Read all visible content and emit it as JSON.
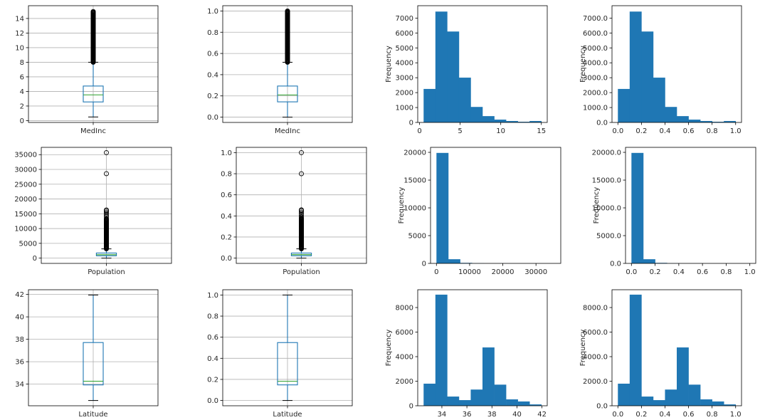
{
  "colors": {
    "bar": "#1f77b4",
    "box": "#1f77b4",
    "median": "#2ca02c",
    "grid": "#b0b0b0",
    "flier_edge": "#000000"
  },
  "chart_data": [
    {
      "type": "box",
      "category": "MedInc",
      "ylim": [
        -0.25,
        15.75
      ],
      "yticks": [
        0,
        2,
        4,
        6,
        8,
        10,
        12,
        14
      ],
      "tick_format": "int",
      "stats": {
        "whislo": 0.5,
        "q1": 2.56,
        "median": 3.53,
        "q3": 4.74,
        "whishi": 8.0
      },
      "outliers_dense_range": [
        8.0,
        15.0
      ],
      "outliers": [],
      "grid": true
    },
    {
      "type": "box",
      "category": "MedInc",
      "ylim": [
        -0.05,
        1.05
      ],
      "yticks": [
        0,
        0.2,
        0.4,
        0.6,
        0.8,
        1.0
      ],
      "tick_format": "1dp",
      "stats": {
        "whislo": 0.0,
        "q1": 0.144,
        "median": 0.209,
        "q3": 0.293,
        "whishi": 0.517
      },
      "outliers_dense_range": [
        0.517,
        1.0
      ],
      "outliers": [],
      "grid": true
    },
    {
      "type": "hist",
      "ylabel": "Frequency",
      "xlim": [
        -0.225,
        15.725
      ],
      "ylim": [
        0,
        7830
      ],
      "bin_range": [
        0.5,
        15.0
      ],
      "xticks": [
        0,
        5,
        10,
        15
      ],
      "yticks": [
        0,
        1000,
        2000,
        3000,
        4000,
        5000,
        6000,
        7000
      ],
      "tick_format": "int",
      "counts": [
        2247,
        7436,
        6098,
        3005,
        1040,
        424,
        190,
        97,
        46,
        97
      ],
      "grid": false
    },
    {
      "type": "hist",
      "ylabel": "Frequency",
      "xlim": [
        -0.05,
        1.05
      ],
      "ylim": [
        0,
        7830
      ],
      "bin_range": [
        0,
        1
      ],
      "xticks": [
        0,
        0.2,
        0.4,
        0.6,
        0.8,
        1.0
      ],
      "yticks": [
        0,
        1000,
        2000,
        3000,
        4000,
        5000,
        6000,
        7000
      ],
      "tick_format": "1dp",
      "counts": [
        2247,
        7436,
        6098,
        3005,
        1040,
        424,
        190,
        97,
        46,
        97
      ],
      "grid": false
    },
    {
      "type": "box",
      "category": "Population",
      "ylim": [
        -1780,
        37465
      ],
      "yticks": [
        0,
        5000,
        10000,
        15000,
        20000,
        25000,
        30000,
        35000
      ],
      "tick_format": "int",
      "stats": {
        "whislo": 3,
        "q1": 787,
        "median": 1166,
        "q3": 1725,
        "whishi": 3132
      },
      "outliers_dense_range": [
        3140,
        13500
      ],
      "outliers": [
        14000,
        14500,
        15000,
        15500,
        16000,
        16300,
        28566,
        35682
      ],
      "grid": true
    },
    {
      "type": "box",
      "category": "Population",
      "ylim": [
        -0.05,
        1.05
      ],
      "yticks": [
        0,
        0.2,
        0.4,
        0.6,
        0.8,
        1.0
      ],
      "tick_format": "1dp",
      "stats": {
        "whislo": 0.0,
        "q1": 0.022,
        "median": 0.033,
        "q3": 0.048,
        "whishi": 0.088
      },
      "outliers_dense_range": [
        0.088,
        0.38
      ],
      "outliers": [
        0.39,
        0.405,
        0.42,
        0.435,
        0.45,
        0.457,
        0.8,
        1.0
      ],
      "grid": true
    },
    {
      "type": "hist",
      "ylabel": "Frequency",
      "xlim": [
        -1781,
        37466
      ],
      "ylim": [
        0,
        20900
      ],
      "bin_range": [
        3,
        35682
      ],
      "xticks": [
        0,
        10000,
        20000,
        30000
      ],
      "yticks": [
        0,
        5000,
        10000,
        15000,
        20000
      ],
      "tick_format": "int",
      "counts": [
        19900,
        750,
        95,
        20,
        6,
        2,
        1,
        0,
        1,
        1
      ],
      "grid": false
    },
    {
      "type": "hist",
      "ylabel": "Frequency",
      "xlim": [
        -0.05,
        1.05
      ],
      "ylim": [
        0,
        20900
      ],
      "bin_range": [
        0,
        1
      ],
      "xticks": [
        0,
        0.2,
        0.4,
        0.6,
        0.8,
        1.0
      ],
      "yticks": [
        0,
        5000,
        10000,
        15000,
        20000
      ],
      "tick_format": "1dp",
      "counts": [
        19900,
        750,
        95,
        20,
        6,
        2,
        1,
        0,
        1,
        1
      ],
      "grid": false
    },
    {
      "type": "box",
      "category": "Latitude",
      "ylim": [
        32.07,
        42.42
      ],
      "yticks": [
        34,
        36,
        38,
        40,
        42
      ],
      "tick_format": "int",
      "stats": {
        "whislo": 32.54,
        "q1": 33.93,
        "median": 34.26,
        "q3": 37.71,
        "whishi": 41.95
      },
      "outliers_dense_range": null,
      "outliers": [],
      "grid": true
    },
    {
      "type": "box",
      "category": "Latitude",
      "ylim": [
        -0.05,
        1.05
      ],
      "yticks": [
        0,
        0.2,
        0.4,
        0.6,
        0.8,
        1.0
      ],
      "tick_format": "1dp",
      "stats": {
        "whislo": 0.0,
        "q1": 0.148,
        "median": 0.182,
        "q3": 0.549,
        "whishi": 1.0
      },
      "outliers_dense_range": null,
      "outliers": [],
      "grid": true
    },
    {
      "type": "hist",
      "ylabel": "Frequency",
      "xlim": [
        32.07,
        42.42
      ],
      "ylim": [
        0,
        9450
      ],
      "bin_range": [
        32.54,
        41.95
      ],
      "xticks": [
        34,
        36,
        38,
        40,
        42
      ],
      "yticks": [
        0,
        2000,
        4000,
        6000,
        8000
      ],
      "tick_format": "int",
      "counts": [
        1800,
        9050,
        750,
        460,
        1320,
        4750,
        1720,
        520,
        350,
        110
      ],
      "grid": false
    },
    {
      "type": "hist",
      "ylabel": "Frequency",
      "xlim": [
        -0.05,
        1.05
      ],
      "ylim": [
        0,
        9450
      ],
      "bin_range": [
        0,
        1
      ],
      "xticks": [
        0,
        0.2,
        0.4,
        0.6,
        0.8,
        1.0
      ],
      "yticks": [
        0,
        2000,
        4000,
        6000,
        8000
      ],
      "tick_format": "1dp",
      "counts": [
        1800,
        9050,
        750,
        460,
        1320,
        4750,
        1720,
        520,
        350,
        110
      ],
      "grid": false
    }
  ]
}
